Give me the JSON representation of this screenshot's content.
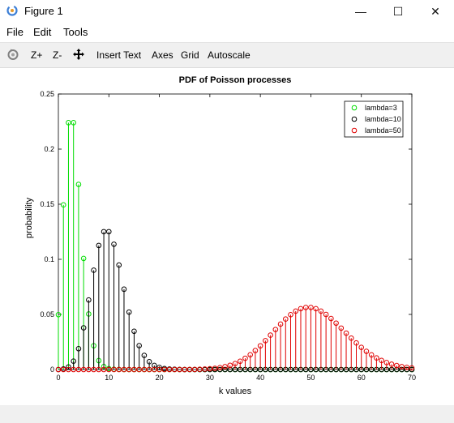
{
  "window": {
    "title": "Figure 1",
    "minimize_glyph": "—",
    "maximize_glyph": "☐",
    "close_glyph": "✕"
  },
  "menu": {
    "items": [
      "File",
      "Edit",
      "Tools"
    ]
  },
  "toolbar": {
    "zoom_in": "Z+",
    "zoom_out": "Z-",
    "insert_text": "Insert Text",
    "axes": "Axes",
    "grid": "Grid",
    "autoscale": "Autoscale",
    "icons": [
      "rotate-icon",
      "pan-icon"
    ]
  },
  "chart_data": {
    "type": "stem",
    "title": "PDF of Poisson processes",
    "xlabel": "k values",
    "ylabel": "probability",
    "xlim": [
      0,
      70
    ],
    "ylim": [
      0,
      0.25
    ],
    "xticks": [
      0,
      10,
      20,
      30,
      40,
      50,
      60,
      70
    ],
    "yticks": [
      0,
      0.05,
      0.1,
      0.15,
      0.2,
      0.25
    ],
    "ytick_labels": [
      "0",
      "0.05",
      "0.1",
      "0.15",
      "0.2",
      "0.25"
    ],
    "grid": false,
    "legend_position": "top-right",
    "series": [
      {
        "name": "lambda=3",
        "color": "#00dd00",
        "x": [
          0,
          1,
          2,
          3,
          4,
          5,
          6,
          7,
          8,
          9,
          10,
          11,
          12,
          13,
          14,
          15,
          16,
          17,
          18,
          19,
          20,
          21,
          22,
          23,
          24,
          25,
          26,
          27,
          28,
          29,
          30,
          31,
          32,
          33,
          34,
          35,
          36,
          37,
          38,
          39,
          40,
          41,
          42,
          43,
          44,
          45,
          46,
          47,
          48,
          49,
          50,
          51,
          52,
          53,
          54,
          55,
          56,
          57,
          58,
          59,
          60,
          61,
          62,
          63,
          64,
          65,
          66,
          67,
          68,
          69,
          70
        ],
        "values": [
          0.0498,
          0.1494,
          0.224,
          0.224,
          0.168,
          0.1008,
          0.0504,
          0.0216,
          0.0081,
          0.0027,
          0.0008,
          0.0002,
          0.0001,
          0,
          0,
          0,
          0,
          0,
          0,
          0,
          0,
          0,
          0,
          0,
          0,
          0,
          0,
          0,
          0,
          0,
          0,
          0,
          0,
          0,
          0,
          0,
          0,
          0,
          0,
          0,
          0,
          0,
          0,
          0,
          0,
          0,
          0,
          0,
          0,
          0,
          0,
          0,
          0,
          0,
          0,
          0,
          0,
          0,
          0,
          0,
          0,
          0,
          0,
          0,
          0,
          0,
          0,
          0,
          0,
          0,
          0
        ]
      },
      {
        "name": "lambda=10",
        "color": "#000000",
        "x": [
          0,
          1,
          2,
          3,
          4,
          5,
          6,
          7,
          8,
          9,
          10,
          11,
          12,
          13,
          14,
          15,
          16,
          17,
          18,
          19,
          20,
          21,
          22,
          23,
          24,
          25,
          26,
          27,
          28,
          29,
          30,
          31,
          32,
          33,
          34,
          35,
          36,
          37,
          38,
          39,
          40,
          41,
          42,
          43,
          44,
          45,
          46,
          47,
          48,
          49,
          50,
          51,
          52,
          53,
          54,
          55,
          56,
          57,
          58,
          59,
          60,
          61,
          62,
          63,
          64,
          65,
          66,
          67,
          68,
          69,
          70
        ],
        "values": [
          0,
          0.0005,
          0.0023,
          0.0076,
          0.0189,
          0.0378,
          0.0631,
          0.0901,
          0.1126,
          0.1251,
          0.1251,
          0.1137,
          0.0948,
          0.0729,
          0.0521,
          0.0347,
          0.0217,
          0.0128,
          0.0071,
          0.0037,
          0.0019,
          0.0009,
          0.0004,
          0.0002,
          0.0001,
          0,
          0,
          0,
          0,
          0,
          0,
          0,
          0,
          0,
          0,
          0,
          0,
          0,
          0,
          0,
          0,
          0,
          0,
          0,
          0,
          0,
          0,
          0,
          0,
          0,
          0,
          0,
          0,
          0,
          0,
          0,
          0,
          0,
          0,
          0,
          0,
          0,
          0,
          0,
          0,
          0,
          0,
          0,
          0,
          0,
          0
        ]
      },
      {
        "name": "lambda=50",
        "color": "#e00000",
        "x": [
          0,
          1,
          2,
          3,
          4,
          5,
          6,
          7,
          8,
          9,
          10,
          11,
          12,
          13,
          14,
          15,
          16,
          17,
          18,
          19,
          20,
          21,
          22,
          23,
          24,
          25,
          26,
          27,
          28,
          29,
          30,
          31,
          32,
          33,
          34,
          35,
          36,
          37,
          38,
          39,
          40,
          41,
          42,
          43,
          44,
          45,
          46,
          47,
          48,
          49,
          50,
          51,
          52,
          53,
          54,
          55,
          56,
          57,
          58,
          59,
          60,
          61,
          62,
          63,
          64,
          65,
          66,
          67,
          68,
          69,
          70
        ],
        "values": [
          0,
          0,
          0,
          0,
          0,
          0,
          0,
          0,
          0,
          0,
          0,
          0,
          0,
          0,
          0,
          0,
          0,
          0,
          0,
          0,
          0,
          0,
          0,
          0,
          0,
          0,
          0.0001,
          0.0001,
          0.0002,
          0.0004,
          0.0007,
          0.0011,
          0.0017,
          0.0026,
          0.0038,
          0.0054,
          0.0075,
          0.0102,
          0.0134,
          0.0172,
          0.0215,
          0.0262,
          0.0312,
          0.0363,
          0.0412,
          0.0458,
          0.0498,
          0.053,
          0.0552,
          0.0563,
          0.0563,
          0.0552,
          0.053,
          0.05,
          0.0463,
          0.0421,
          0.0376,
          0.033,
          0.0285,
          0.0241,
          0.0201,
          0.0165,
          0.0133,
          0.0105,
          0.0082,
          0.0063,
          0.0048,
          0.0036,
          0.0026,
          0.0019,
          0.0014
        ]
      }
    ]
  }
}
